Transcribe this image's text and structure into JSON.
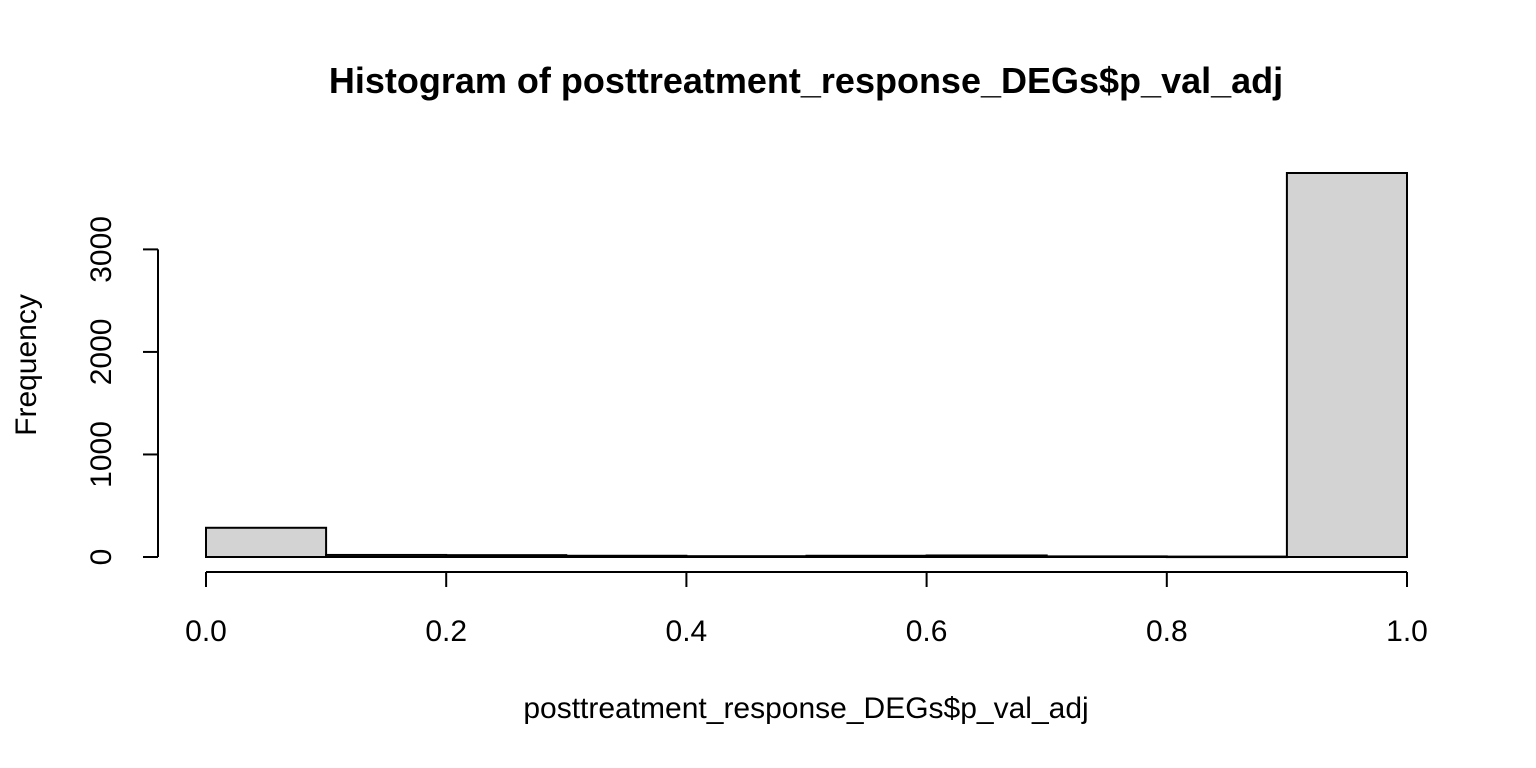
{
  "chart_data": {
    "type": "bar",
    "title": "Histogram of posttreatment_response_DEGs$p_val_adj",
    "xlabel": "posttreatment_response_DEGs$p_val_adj",
    "ylabel": "Frequency",
    "bin_edges": [
      0.0,
      0.1,
      0.2,
      0.3,
      0.4,
      0.5,
      0.6,
      0.7,
      0.8,
      0.9,
      1.0
    ],
    "values": [
      285,
      20,
      18,
      12,
      8,
      12,
      15,
      6,
      4,
      3745
    ],
    "xlim": [
      0.0,
      1.0
    ],
    "ylim": [
      0,
      3745
    ],
    "x_ticks": [
      0.0,
      0.2,
      0.4,
      0.6,
      0.8,
      1.0
    ],
    "x_tick_labels": [
      "0.0",
      "0.2",
      "0.4",
      "0.6",
      "0.8",
      "1.0"
    ],
    "y_ticks": [
      0,
      1000,
      2000,
      3000
    ],
    "y_tick_labels": [
      "0",
      "1000",
      "2000",
      "3000"
    ],
    "grid": false,
    "legend": "none",
    "colors": {
      "bar_fill": "#d3d3d3",
      "bar_stroke": "#000000",
      "axis": "#000000",
      "background": "#ffffff"
    }
  }
}
